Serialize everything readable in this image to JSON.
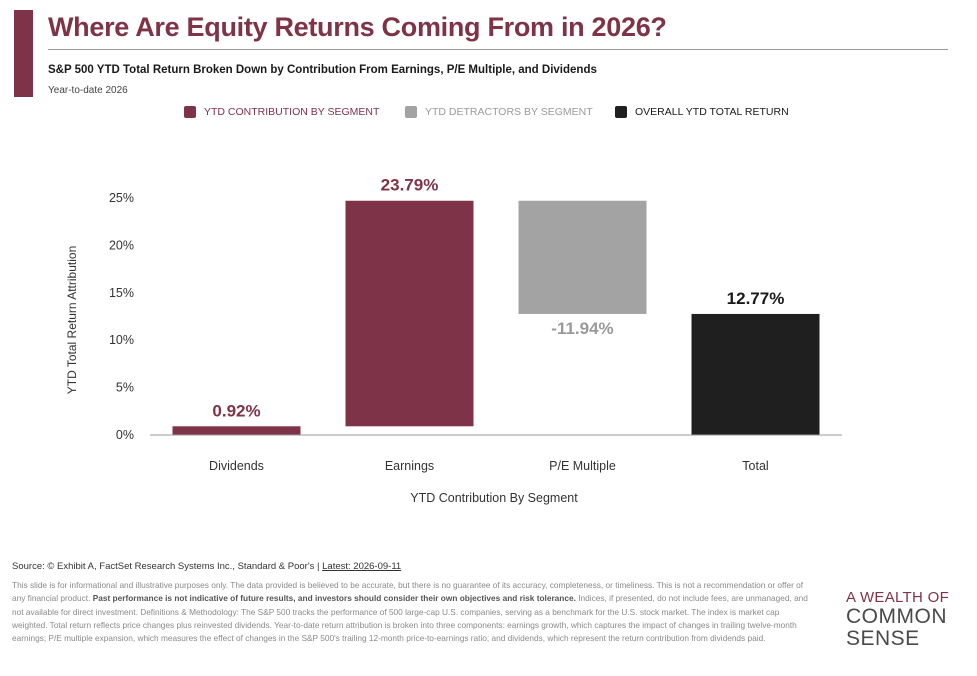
{
  "header": {
    "title": "Where Are Equity Returns Coming From in 2026?",
    "subtitle": "S&P 500 YTD Total Return Broken Down by Contribution From Earnings, P/E Multiple, and Dividends",
    "period": "Year-to-date 2026"
  },
  "legend": {
    "items": [
      {
        "label": "YTD CONTRIBUTION BY SEGMENT",
        "color": "#7e3349",
        "text_color": "#7e3349"
      },
      {
        "label": "YTD DETRACTORS BY SEGMENT",
        "color": "#a3a3a3",
        "text_color": "#9a9a9a"
      },
      {
        "label": "OVERALL YTD TOTAL RETURN",
        "color": "#1f1f1f",
        "text_color": "#1a1a1a"
      }
    ]
  },
  "chart_data": {
    "type": "bar",
    "subtype": "waterfall",
    "xlabel": "YTD Contribution By Segment",
    "ylabel": "YTD Total Return Attribution",
    "ylim": [
      0,
      25
    ],
    "yticks": [
      0,
      5,
      10,
      15,
      20,
      25
    ],
    "ytick_labels": [
      "0%",
      "5%",
      "10%",
      "15%",
      "20%",
      "25%"
    ],
    "grid": false,
    "legend_position": "top",
    "categories": [
      "Dividends",
      "Earnings",
      "P/E Multiple",
      "Total"
    ],
    "bars": [
      {
        "category": "Dividends",
        "start": 0,
        "end": 0.92,
        "value_label": "0.92%",
        "kind": "contribution",
        "color": "#7e3349"
      },
      {
        "category": "Earnings",
        "start": 0.92,
        "end": 24.71,
        "value_label": "23.79%",
        "kind": "contribution",
        "color": "#7e3349"
      },
      {
        "category": "P/E Multiple",
        "start": 24.71,
        "end": 12.77,
        "value_label": "-11.94%",
        "kind": "detractor",
        "color": "#a3a3a3"
      },
      {
        "category": "Total",
        "start": 0,
        "end": 12.77,
        "value_label": "12.77%",
        "kind": "total",
        "color": "#1f1f1f"
      }
    ],
    "label_colors": {
      "contribution": "#7e3349",
      "detractor": "#9a9a9a",
      "total": "#1a1a1a"
    }
  },
  "footer": {
    "source_text": "Source: © Exhibit A, FactSet Research Systems Inc., Standard & Poor's | ",
    "latest": "Latest: 2026-09-11",
    "disclaimer_1": "This slide is for informational and illustrative purposes only. The data provided is believed to be accurate, but there is no guarantee of its accuracy, completeness, or timeliness. This is not a recommendation or offer of any financial product. ",
    "disclaimer_bold": "Past performance is not indicative of future results, and investors should consider their own objectives and risk tolerance.",
    "disclaimer_2": " Indices, if presented, do not include fees, are unmanaged, and not available for direct investment. Definitions & Methodology: The S&P 500 tracks the performance of 500 large-cap U.S. companies, serving as a benchmark for the U.S. stock market. The index is market cap weighted. Total return reflects price changes plus reinvested dividends. Year-to-date return attribution is broken into three components: earnings growth, which captures the impact of changes in trailing twelve-month earnings; P/E multiple expansion, which measures the effect of changes in the S&P 500's trailing 12-month price-to-earnings ratio; and dividends, which represent the return contribution from dividends paid.",
    "brand_line1": "A WEALTH OF",
    "brand_line2": "COMMON",
    "brand_line3": "SENSE"
  }
}
